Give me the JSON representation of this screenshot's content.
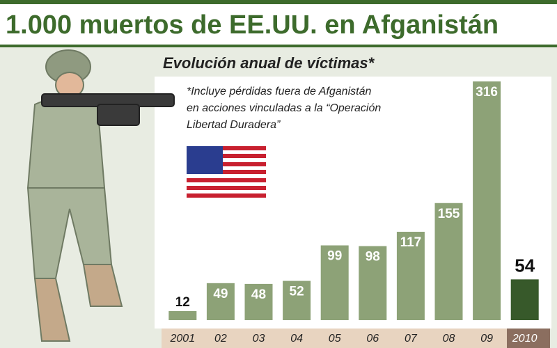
{
  "chart_data": {
    "type": "bar",
    "title": "1.000 muertos de EE.UU. en Afganistán",
    "subtitle": "Evolución anual de víctimas*",
    "note": [
      "*Incluye pérdidas fuera de Afganistán",
      "en acciones vinculadas a la “Operación",
      "Libertad Duradera”"
    ],
    "categories": [
      "2001",
      "02",
      "03",
      "04",
      "05",
      "06",
      "07",
      "08",
      "09",
      "2010"
    ],
    "values": [
      12,
      49,
      48,
      52,
      99,
      98,
      117,
      155,
      316,
      54
    ],
    "colors": [
      "#8da277",
      "#8da277",
      "#8da277",
      "#8da277",
      "#8da277",
      "#8da277",
      "#8da277",
      "#8da277",
      "#8da277",
      "#37592a"
    ]
  }
}
